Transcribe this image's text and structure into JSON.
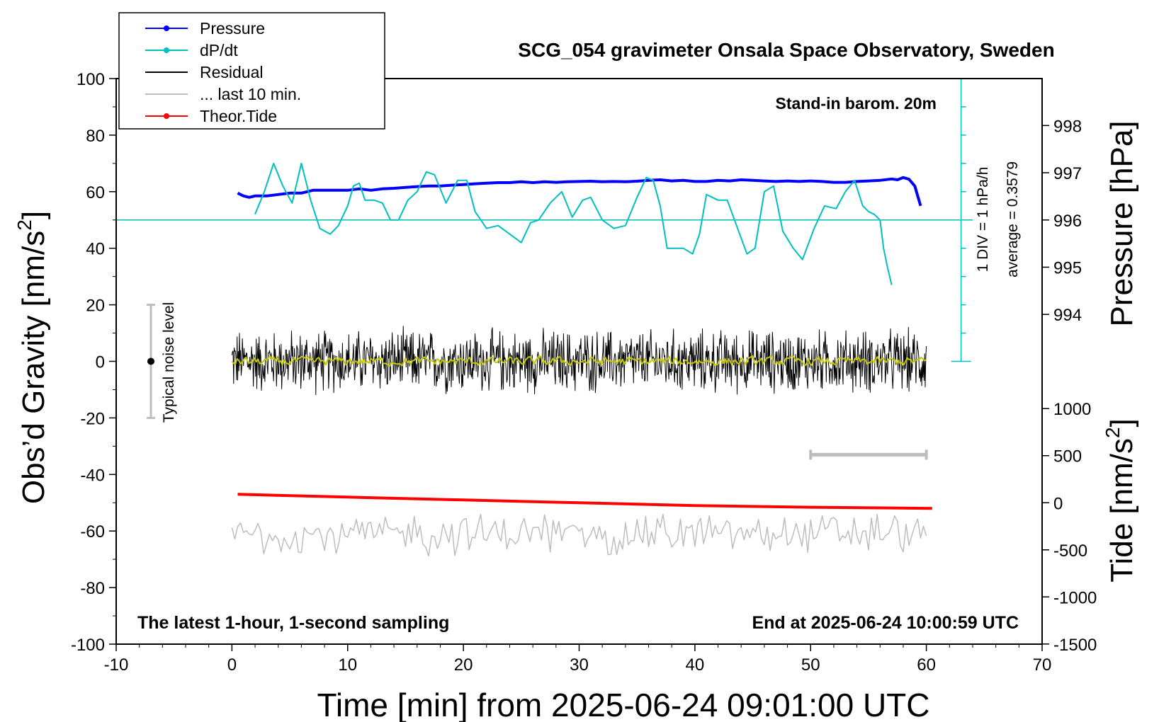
{
  "chart_data": {
    "type": "line",
    "title": "SCG_054 gravimeter Onsala Space Observatory, Sweden",
    "xlabel": "Time [min] from 2025-06-24 09:01:00 UTC",
    "ylabel_left_prefix": "Obs’d Gravity [nm/s",
    "ylabel_right_top": "Pressure [hPa]",
    "ylabel_right_bottom_prefix": "Tide [nm/s",
    "unit_superscript": "2",
    "xlim": [
      -10,
      70
    ],
    "ylim": [
      -100,
      100
    ],
    "xticks": [
      "-10",
      "0",
      "10",
      "20",
      "30",
      "40",
      "50",
      "60",
      "70"
    ],
    "yticks": [
      "-100",
      "-80",
      "-60",
      "-40",
      "-20",
      "0",
      "20",
      "40",
      "60",
      "80",
      "100"
    ],
    "pressure_axis": {
      "ticks": [
        "998",
        "997",
        "996",
        "995",
        "994"
      ],
      "tick_values": [
        998,
        997,
        996,
        995,
        994
      ],
      "ref_value": 996,
      "ref_gravity": 50,
      "gravity_per_hPa": 16.7
    },
    "tide_axis": {
      "ticks": [
        "1000",
        "500",
        "0",
        "-500",
        "-1000",
        "-1500"
      ],
      "tick_values": [
        1000,
        500,
        0,
        -500,
        -1000,
        -1500
      ],
      "ref_value": 0,
      "ref_gravity": -50,
      "gravity_per_unit": 0.0333
    },
    "annotations": {
      "barometer": "Stand-in barom. 20m",
      "div_scale": "1 DIV = 1 hPa/h",
      "average": "average = 0.3579",
      "noise": "Typical noise level",
      "latest": "The latest 1-hour, 1-second sampling",
      "end_time": "End at 2025-06-24 10:00:59 UTC"
    },
    "noise_bar": {
      "x": -7,
      "center": 0,
      "half_range": 20
    },
    "ten_min_bar": {
      "x_start": 50,
      "x_end": 60,
      "y": -33
    },
    "dpdt_ref": {
      "y": 50,
      "x_start": -10,
      "x_end": 64
    },
    "div_scale_axis": {
      "x": 63,
      "y_top": 100,
      "y_bottom": 0,
      "div_step": 10
    },
    "legend": [
      {
        "label": "Pressure",
        "color": "#0000ff",
        "marker": true
      },
      {
        "label": "dP/dt",
        "color": "#00bfbf",
        "marker": true
      },
      {
        "label": "Residual",
        "color": "#000000",
        "marker": false
      },
      {
        "label": "... last 10 min.",
        "color": "#bdbdbd",
        "marker": false
      },
      {
        "label": "Theor.Tide",
        "color": "#ff0000",
        "marker": true
      }
    ],
    "series": [
      {
        "name": "Pressure",
        "color": "#0000ff",
        "axis": "gravity",
        "x": [
          0.5,
          1,
          1.5,
          2,
          3,
          4,
          5,
          6,
          7,
          8,
          9,
          10,
          11,
          12,
          13,
          14,
          15,
          16,
          17,
          18,
          19,
          20,
          21,
          22,
          23,
          24,
          25,
          26,
          27,
          28,
          29,
          30,
          31,
          32,
          33,
          34,
          35,
          36,
          37,
          38,
          39,
          40,
          41,
          42,
          43,
          44,
          45,
          46,
          47,
          48,
          49,
          50,
          51,
          52,
          53,
          54,
          55,
          56,
          57,
          57.5,
          58,
          58.5,
          59,
          59.5
        ],
        "y": [
          59.5,
          58.5,
          58,
          58.5,
          58.5,
          59,
          59.5,
          59.5,
          60.5,
          60.5,
          60.5,
          60.5,
          61,
          60.5,
          61,
          61.2,
          61.5,
          61.8,
          62,
          62,
          62.3,
          62.5,
          62.8,
          63,
          63.2,
          63.2,
          63.5,
          63.2,
          63.5,
          63.3,
          63.5,
          63.6,
          63.7,
          63.5,
          63.6,
          63.5,
          63.7,
          64,
          64.2,
          63.8,
          64,
          63.6,
          63.6,
          64,
          63.8,
          64.2,
          64,
          63.8,
          63.6,
          63.8,
          63.6,
          63.8,
          63.6,
          63.3,
          63.3,
          63.6,
          63.8,
          64,
          64.5,
          64.2,
          65,
          64.4,
          62,
          55
        ]
      },
      {
        "name": "dP/dt",
        "color": "#00bfbf",
        "axis": "gravity",
        "x": [
          2,
          2.8,
          3.6,
          4.4,
          5.2,
          6,
          6.8,
          7.6,
          8.5,
          9.2,
          10,
          10.5,
          11,
          11.5,
          12.3,
          13,
          13.7,
          14.4,
          15.2,
          16,
          16.8,
          17.5,
          18.5,
          19.5,
          20.3,
          21,
          22,
          23,
          24,
          25,
          25.8,
          26.5,
          27.5,
          28.5,
          29.4,
          30.3,
          31,
          32,
          33,
          34,
          35,
          35.8,
          36.4,
          37,
          37.6,
          38.3,
          39,
          39.8,
          40.4,
          41,
          42,
          42.8,
          43.6,
          44.5,
          45.2,
          46,
          46.8,
          47.6,
          48.5,
          49.3,
          50.3,
          51.2,
          52.2,
          53,
          53.8,
          54.5,
          55,
          55.5,
          56,
          56.3,
          56.6,
          57
        ],
        "y": [
          52,
          60,
          70,
          62,
          56,
          70,
          57,
          47,
          45,
          48,
          55,
          62,
          63,
          57,
          57,
          56,
          50,
          50,
          57,
          60,
          67,
          66,
          56,
          64,
          64,
          53,
          47,
          48,
          45,
          42,
          49,
          50,
          56,
          60,
          51,
          57,
          58,
          50,
          47,
          48,
          58,
          65,
          64,
          55,
          40,
          40,
          40,
          38,
          45,
          59,
          57,
          57,
          48,
          38,
          40,
          60,
          62,
          46,
          40,
          36,
          47,
          55,
          54,
          60,
          64,
          55,
          53,
          52,
          50,
          40,
          34,
          27
        ]
      },
      {
        "name": "Residual",
        "color": "#000000",
        "axis": "gravity",
        "x_range": [
          0,
          60
        ],
        "y_center": 0,
        "noise_amplitude": 13
      },
      {
        "name": "Residual smooth",
        "color": "#c8c800",
        "axis": "gravity",
        "x_range": [
          0,
          60
        ],
        "y_center": 0,
        "noise_amplitude": 2.2
      },
      {
        "name": "... last 10 min.",
        "color": "#bdbdbd",
        "axis": "gravity",
        "x_range": [
          0,
          60
        ],
        "y_center": -61,
        "noise_amplitude": 9
      },
      {
        "name": "Theor.Tide",
        "color": "#ff0000",
        "axis": "gravity",
        "x": [
          0.5,
          10,
          20,
          30,
          40,
          50,
          60.5
        ],
        "y": [
          -47,
          -48,
          -49,
          -50,
          -51,
          -51.6,
          -52
        ]
      }
    ]
  }
}
